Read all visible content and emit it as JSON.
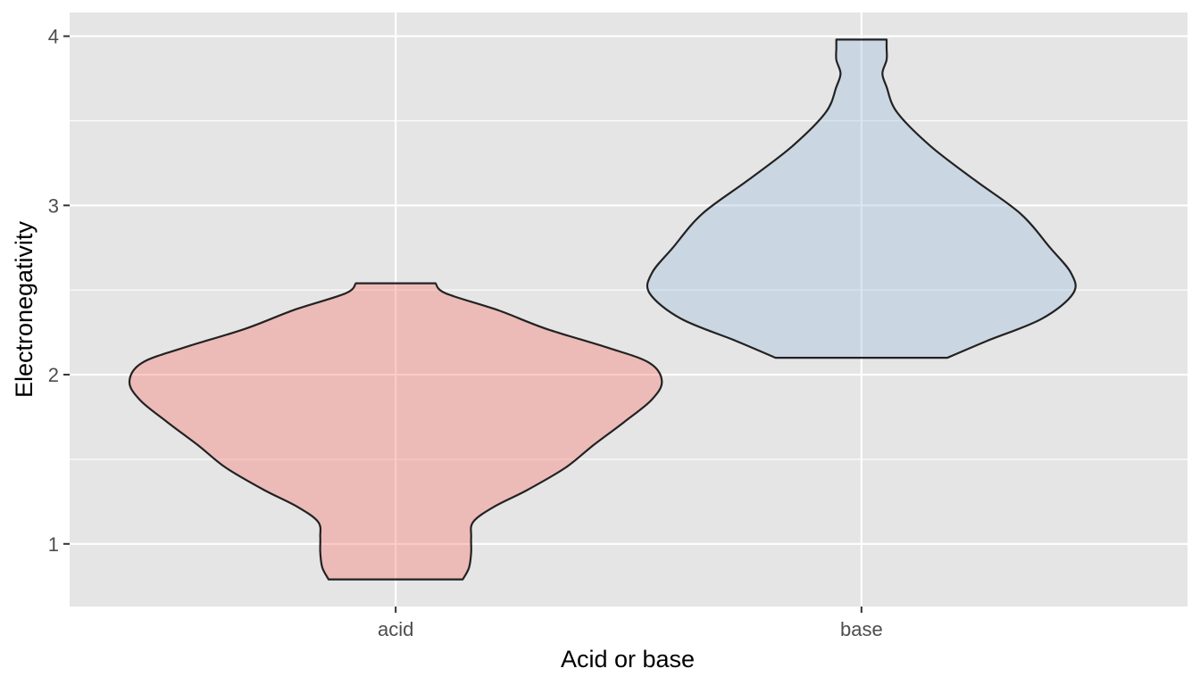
{
  "chart_data": {
    "type": "violin",
    "xlabel": "Acid or base",
    "ylabel": "Electronegativity",
    "categories": [
      "acid",
      "base"
    ],
    "ylim": [
      0.63,
      4.14
    ],
    "yticks": [
      1,
      2,
      3,
      4
    ],
    "grid": true,
    "legend": "none",
    "colors": {
      "panel": "#E5E5E5",
      "grid": "#FFFFFF",
      "outline": "#222222",
      "acid": "#F8766D",
      "base": "#9EBCDA"
    },
    "series": [
      {
        "category": "acid",
        "min": 0.79,
        "max": 2.54,
        "density": [
          [
            0.79,
            0.32
          ],
          [
            0.86,
            0.35
          ],
          [
            0.95,
            0.36
          ],
          [
            1.04,
            0.36
          ],
          [
            1.13,
            0.37
          ],
          [
            1.22,
            0.47
          ],
          [
            1.32,
            0.63
          ],
          [
            1.45,
            0.81
          ],
          [
            1.58,
            0.94
          ],
          [
            1.72,
            1.09
          ],
          [
            1.85,
            1.22
          ],
          [
            1.96,
            1.27
          ],
          [
            2.07,
            1.21
          ],
          [
            2.16,
            1.01
          ],
          [
            2.27,
            0.72
          ],
          [
            2.38,
            0.49
          ],
          [
            2.48,
            0.24
          ],
          [
            2.54,
            0.19
          ]
        ]
      },
      {
        "category": "base",
        "min": 2.1,
        "max": 3.98,
        "density": [
          [
            2.1,
            0.41
          ],
          [
            2.2,
            0.6
          ],
          [
            2.33,
            0.86
          ],
          [
            2.48,
            1.01
          ],
          [
            2.6,
            1.0
          ],
          [
            2.75,
            0.9
          ],
          [
            2.95,
            0.76
          ],
          [
            3.15,
            0.54
          ],
          [
            3.35,
            0.33
          ],
          [
            3.55,
            0.17
          ],
          [
            3.7,
            0.12
          ],
          [
            3.78,
            0.1
          ],
          [
            3.86,
            0.12
          ],
          [
            3.93,
            0.12
          ],
          [
            3.98,
            0.12
          ]
        ]
      }
    ]
  }
}
